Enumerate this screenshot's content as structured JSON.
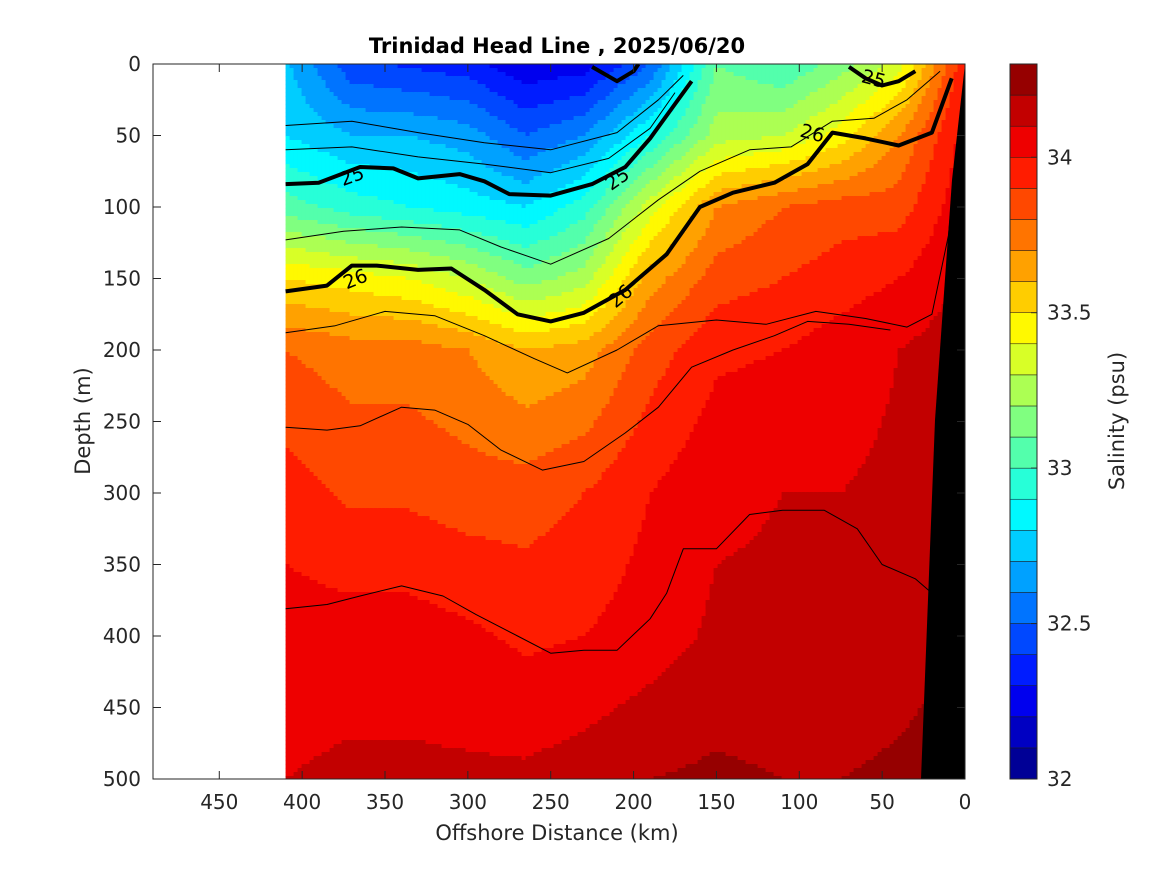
{
  "chart_data": {
    "type": "heatmap",
    "title": "Trinidad Head Line , 2025/06/20",
    "xlabel": "Offshore Distance (km)",
    "ylabel": "Depth (m)",
    "colorbar_label": "Salinity (psu)",
    "x_ticks": [
      "450",
      "400",
      "350",
      "300",
      "250",
      "200",
      "150",
      "100",
      "50",
      "0"
    ],
    "y_ticks": [
      "0",
      "50",
      "100",
      "150",
      "200",
      "250",
      "300",
      "350",
      "400",
      "450",
      "500"
    ],
    "colorbar_ticks": [
      "32",
      "32.5",
      "33",
      "33.5",
      "34"
    ],
    "xlim": [
      490,
      0
    ],
    "ylim": [
      0,
      500
    ],
    "clim": [
      32,
      34.3
    ],
    "data_extent_km": [
      410,
      0
    ],
    "series": [
      {
        "depth": 0,
        "salinity": [
          32.72,
          32.43,
          32.38,
          32.34,
          32.22,
          32.25,
          32.5,
          33.1,
          33.0,
          33.15,
          33.35,
          33.9
        ]
      },
      {
        "depth": 50,
        "salinity": [
          32.8,
          32.7,
          32.7,
          32.65,
          32.5,
          32.6,
          32.9,
          33.25,
          33.3,
          33.45,
          33.7,
          34.0
        ]
      },
      {
        "depth": 100,
        "salinity": [
          33.05,
          32.95,
          32.9,
          32.85,
          32.8,
          32.95,
          33.35,
          33.7,
          33.8,
          33.85,
          33.85,
          34.05
        ]
      },
      {
        "depth": 150,
        "salinity": [
          33.5,
          33.45,
          33.4,
          33.3,
          33.15,
          33.25,
          33.65,
          33.85,
          33.9,
          33.95,
          34.0,
          34.1
        ]
      },
      {
        "depth": 200,
        "salinity": [
          33.8,
          33.75,
          33.75,
          33.7,
          33.6,
          33.65,
          33.85,
          33.98,
          34.0,
          34.05,
          34.1,
          34.15
        ]
      },
      {
        "depth": 300,
        "salinity": [
          33.95,
          33.88,
          33.88,
          33.85,
          33.85,
          33.9,
          34.0,
          34.08,
          34.1,
          34.1,
          34.12,
          34.18
        ]
      },
      {
        "depth": 400,
        "salinity": [
          34.05,
          34.05,
          34.05,
          34.02,
          33.98,
          34.0,
          34.05,
          34.12,
          34.12,
          34.12,
          34.15,
          34.2
        ]
      },
      {
        "depth": 500,
        "salinity": [
          34.1,
          34.12,
          34.12,
          34.12,
          34.12,
          34.15,
          34.2,
          34.22,
          34.2,
          34.2,
          34.22,
          34.25
        ]
      }
    ],
    "x_km": [
      410,
      370,
      335,
      300,
      265,
      230,
      190,
      150,
      110,
      75,
      40,
      5
    ],
    "density_contours": [
      {
        "label": "25",
        "bold": true
      },
      {
        "label": "26",
        "bold": true
      },
      {
        "label": "25",
        "bold": true
      },
      {
        "label": "26",
        "bold": true
      },
      {
        "label": "25",
        "bold": true
      },
      {
        "label": "26",
        "bold": true
      }
    ]
  }
}
